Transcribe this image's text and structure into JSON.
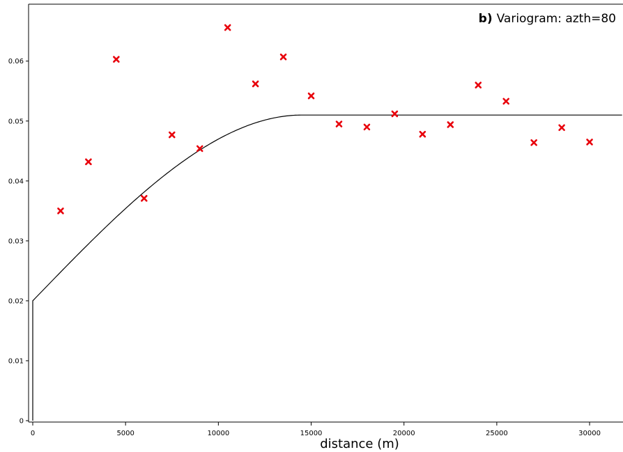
{
  "chart_data": {
    "type": "scatter",
    "panel_label": "b)",
    "title": "Variogram: azth=80",
    "xlabel": "distance (m)",
    "ylabel": "",
    "xlim": [
      0,
      31800
    ],
    "ylim": [
      0,
      0.0695
    ],
    "x_ticks": [
      0,
      5000,
      10000,
      15000,
      20000,
      25000,
      30000
    ],
    "x_tick_labels": [
      "0",
      "5000",
      "10000",
      "15000",
      "20000",
      "25000",
      "30000"
    ],
    "y_ticks": [
      0,
      0.01,
      0.02,
      0.03,
      0.04,
      0.05,
      0.06
    ],
    "y_tick_labels": [
      "0",
      "0.01",
      "0.02",
      "0.03",
      "0.04",
      "0.05",
      "0.06"
    ],
    "grid": false,
    "colors": {
      "points": "#e8000b",
      "model": "#000000"
    },
    "series": [
      {
        "kind": "points",
        "marker": "x",
        "x": [
          1500,
          3000,
          4500,
          6000,
          7500,
          9000,
          10500,
          12000,
          13500,
          15000,
          16500,
          18000,
          19500,
          21000,
          22500,
          24000,
          25500,
          27000,
          28500,
          30000
        ],
        "y": [
          0.035,
          0.0432,
          0.0603,
          0.0371,
          0.0477,
          0.0454,
          0.0656,
          0.0562,
          0.0607,
          0.0542,
          0.0495,
          0.049,
          0.0512,
          0.0478,
          0.0494,
          0.056,
          0.0533,
          0.0464,
          0.0489,
          0.0465
        ]
      },
      {
        "kind": "line",
        "model": "spherical",
        "nugget": 0.02,
        "sill": 0.051,
        "range": 14500
      }
    ]
  }
}
